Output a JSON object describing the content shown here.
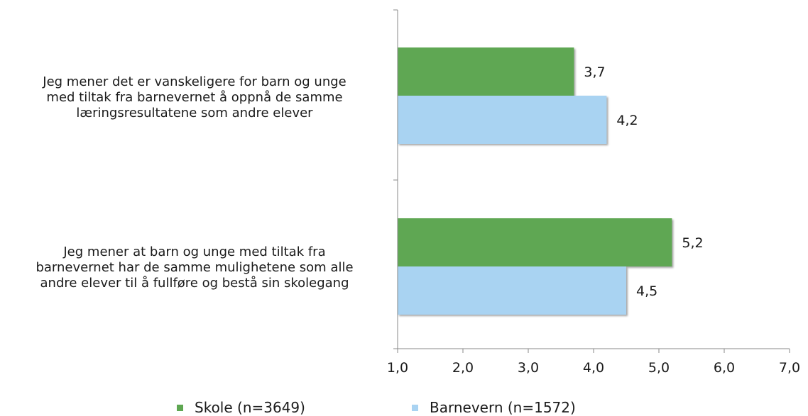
{
  "chart_data": {
    "type": "bar",
    "orientation": "horizontal",
    "categories": [
      "Jeg mener det er vanskeligere for barn og unge med tiltak fra barnevernet å oppnå de samme læringsresultatene som andre elever",
      "Jeg mener at barn og unge med tiltak fra barnevernet har de samme mulighetene som alle andre elever til å fullføre og bestå sin skolegang"
    ],
    "category_lines": [
      [
        "Jeg mener det er vanskeligere for barn og unge",
        "med tiltak fra barnevernet å oppnå de samme",
        "læringsresultatene som andre elever"
      ],
      [
        "Jeg mener at barn og unge med tiltak fra",
        "barnevernet har de samme mulighetene som alle",
        "andre elever til å fullføre og bestå sin skolegang"
      ]
    ],
    "series": [
      {
        "name": "Skole (n=3649)",
        "color": "#5ea752",
        "values": [
          3.7,
          5.2
        ],
        "labels": [
          "3,7",
          "5,2"
        ]
      },
      {
        "name": "Barnevern (n=1572)",
        "color": "#a9d3f2",
        "values": [
          4.2,
          4.5
        ],
        "labels": [
          "4,2",
          "4,5"
        ]
      }
    ],
    "xlim": [
      1,
      7
    ],
    "xticks": [
      1,
      2,
      3,
      4,
      5,
      6,
      7
    ],
    "xtick_labels": [
      "1,0",
      "2,0",
      "3,0",
      "4,0",
      "5,0",
      "6,0",
      "7,0"
    ],
    "xlabel": "",
    "ylabel": "",
    "title": "",
    "grid": false,
    "legend_position": "bottom"
  }
}
